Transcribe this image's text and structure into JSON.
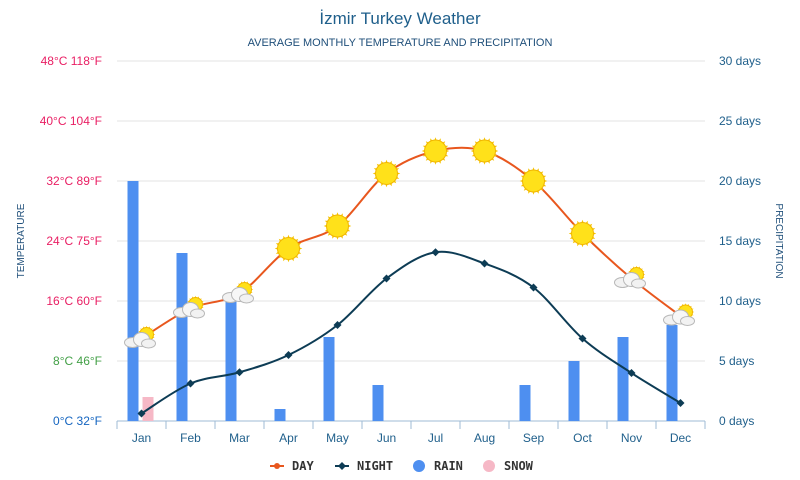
{
  "chart_data": {
    "type": "bar",
    "title": "İzmir Turkey Weather",
    "subtitle": "AVERAGE MONTHLY TEMPERATURE AND PRECIPITATION",
    "categories": [
      "Jan",
      "Feb",
      "Mar",
      "Apr",
      "May",
      "Jun",
      "Jul",
      "Aug",
      "Sep",
      "Oct",
      "Nov",
      "Dec"
    ],
    "left_axis": {
      "label": "TEMPERATURE",
      "ylim": [
        0,
        48
      ],
      "ticks": [
        {
          "value": 0,
          "label": "0°C 32°F",
          "color": "#1565c0"
        },
        {
          "value": 8,
          "label": "8°C 46°F",
          "color": "#43a047"
        },
        {
          "value": 16,
          "label": "16°C 60°F",
          "color": "#e91e63"
        },
        {
          "value": 24,
          "label": "24°C 75°F",
          "color": "#e91e63"
        },
        {
          "value": 32,
          "label": "32°C 89°F",
          "color": "#e91e63"
        },
        {
          "value": 40,
          "label": "40°C 104°F",
          "color": "#e91e63"
        },
        {
          "value": 48,
          "label": "48°C 118°F",
          "color": "#e91e63"
        }
      ]
    },
    "right_axis": {
      "label": "PRECIPITATION",
      "ylim": [
        0,
        30
      ],
      "ticks": [
        {
          "value": 0,
          "label": "0 days"
        },
        {
          "value": 5,
          "label": "5 days"
        },
        {
          "value": 10,
          "label": "10 days"
        },
        {
          "value": 15,
          "label": "15 days"
        },
        {
          "value": 20,
          "label": "20 days"
        },
        {
          "value": 25,
          "label": "25 days"
        },
        {
          "value": 30,
          "label": "30 days"
        }
      ]
    },
    "series": [
      {
        "name": "DAY",
        "kind": "line",
        "axis": "left",
        "color": "#e8571e",
        "values": [
          11,
          15,
          17,
          23,
          26,
          33,
          36,
          36,
          32,
          25,
          19,
          14
        ]
      },
      {
        "name": "NIGHT",
        "kind": "line",
        "axis": "left",
        "color": "#0d3c55",
        "values": [
          1,
          5,
          6.5,
          8.8,
          12.8,
          19,
          22.5,
          21,
          17.8,
          11,
          6.4,
          2.4
        ]
      },
      {
        "name": "RAIN",
        "kind": "bar",
        "axis": "right",
        "color": "#4e8ff0",
        "values": [
          20,
          14,
          10,
          1,
          7,
          3,
          0,
          0,
          3,
          5,
          7,
          8
        ]
      },
      {
        "name": "SNOW",
        "kind": "bar",
        "axis": "right",
        "color": "#f6b8c6",
        "values": [
          2,
          0,
          0,
          0,
          0,
          0,
          0,
          0,
          0,
          0,
          0,
          0
        ]
      }
    ],
    "day_icons": [
      "cloudy-sun-icon",
      "cloudy-sun-icon",
      "cloudy-sun-icon",
      "sun-icon",
      "sun-icon",
      "sun-icon",
      "sun-icon",
      "sun-icon",
      "sun-icon",
      "sun-icon",
      "cloudy-sun-icon",
      "cloudy-sun-icon"
    ],
    "legend": {
      "placement": "bottom-center",
      "items": [
        "DAY",
        "NIGHT",
        "RAIN",
        "SNOW"
      ]
    },
    "grid": true
  }
}
